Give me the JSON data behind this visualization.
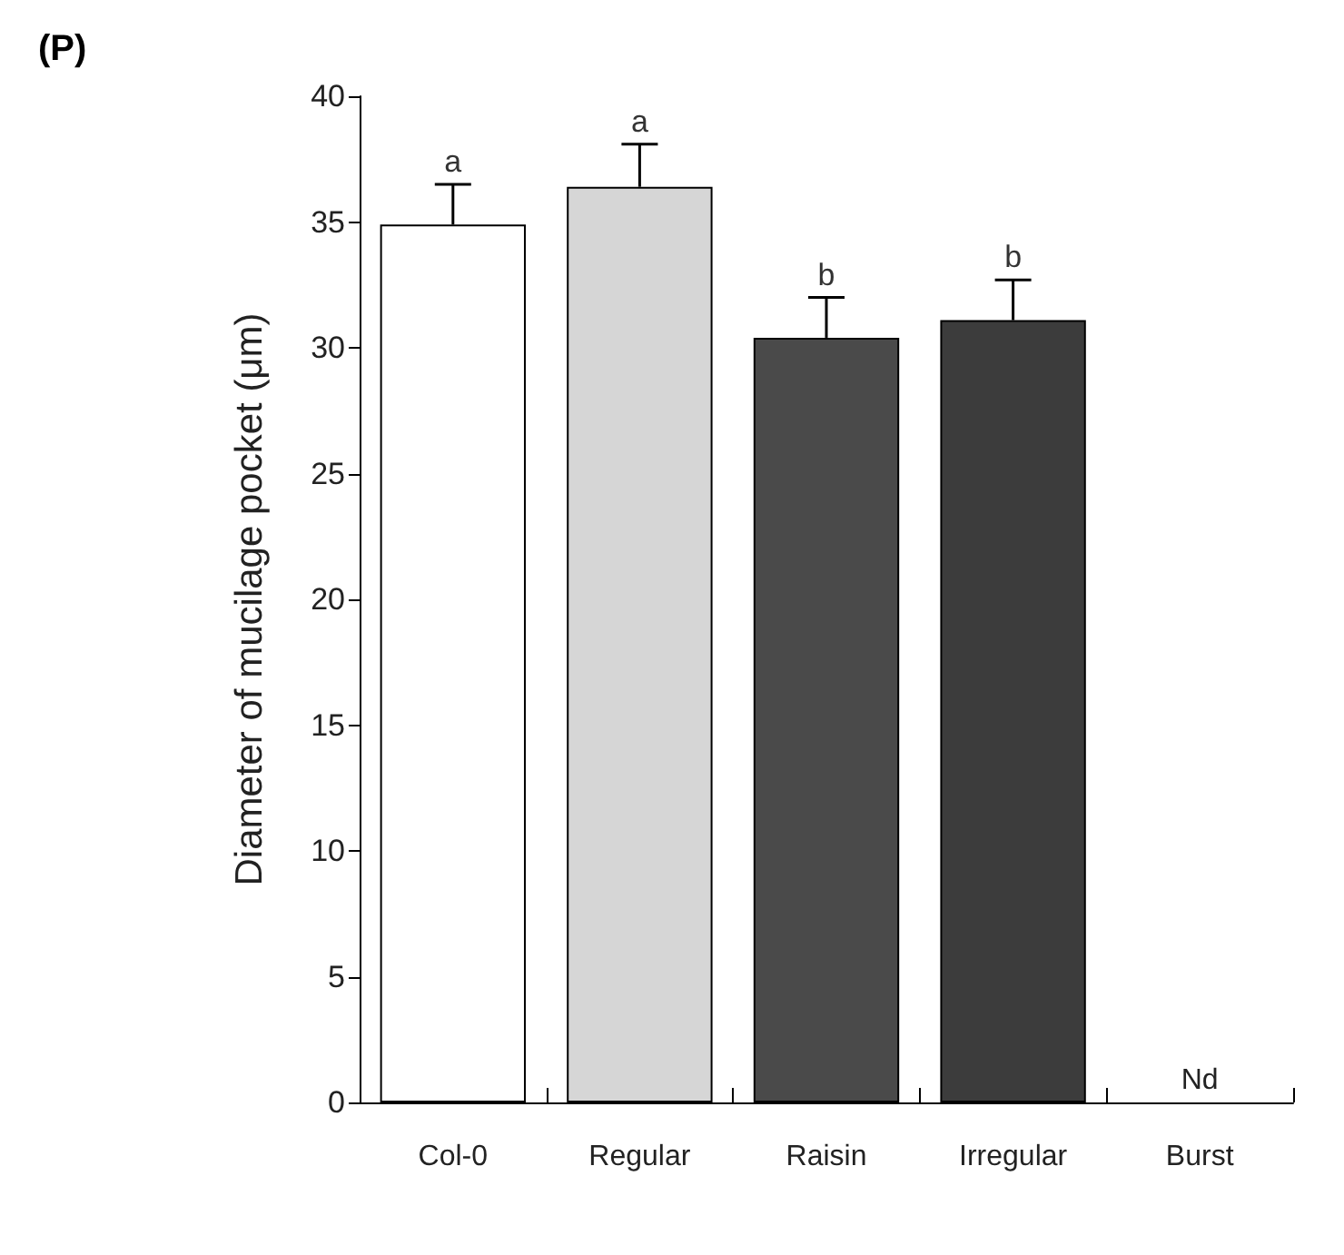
{
  "chart_data": {
    "type": "bar",
    "title": "(P)",
    "ylabel": "Diameter of mucilage pocket (μm)",
    "categories": [
      "Col-0",
      "Regular",
      "Raisin",
      "Irregular",
      "Burst"
    ],
    "values": [
      34.9,
      36.4,
      30.4,
      31.1,
      null
    ],
    "colors": [
      "#ffffff",
      "#d6d6d6",
      "#4a4a4a",
      "#3c3c3c",
      "#3c3c3c"
    ],
    "errors": [
      [
        34.9,
        36.5
      ],
      [
        36.4,
        38.1
      ],
      [
        30.4,
        32.0
      ],
      [
        31.1,
        32.7
      ],
      null
    ],
    "ylim": [
      0,
      40
    ],
    "yticks": [
      0,
      5,
      10,
      15,
      20,
      25,
      30,
      35,
      40
    ],
    "grid": false,
    "annotations": [
      {
        "text": "a",
        "x": "Col-0",
        "y": 36.5
      },
      {
        "text": "a",
        "x": "Regular",
        "y": 38.1
      },
      {
        "text": "b",
        "x": "Raisin",
        "y": 32.0
      },
      {
        "text": "b",
        "x": "Irregular",
        "y": 32.7
      },
      "Nd"
    ]
  }
}
